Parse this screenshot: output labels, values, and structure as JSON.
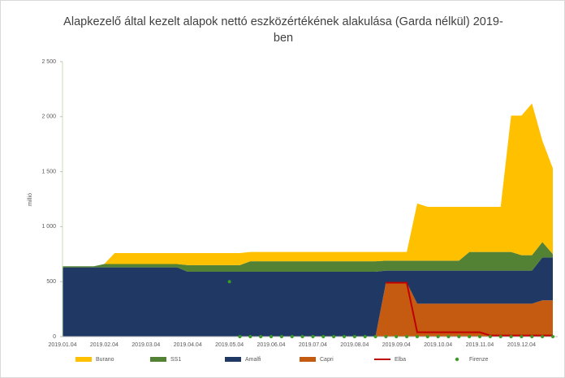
{
  "chart_data": {
    "type": "stacked_area",
    "title": "Alapkezelő által kezelt alapok nettó eszközértékének alakulása (Garda nélkül) 2019-ben",
    "y_label": "millió",
    "categories": [
      "2019.01.04",
      null,
      null,
      null,
      "2019.02.04",
      null,
      null,
      null,
      "2019.03.04",
      null,
      null,
      null,
      "2019.04.04",
      null,
      null,
      null,
      "2019.05.04",
      null,
      null,
      null,
      "2019.06.04",
      null,
      null,
      null,
      "2019.07.04",
      null,
      null,
      null,
      "2019.08.04",
      null,
      null,
      null,
      "2019.09.04",
      null,
      null,
      null,
      "2019.10.04",
      null,
      null,
      null,
      "2019.11.04",
      null,
      null,
      null,
      "2019.12.04",
      null,
      null,
      null
    ],
    "ylim": [
      0,
      2500
    ],
    "yticks": [
      0,
      500,
      {
        "value": 1000,
        "label": "1 000"
      },
      {
        "value": 1500,
        "label": "1 500"
      },
      {
        "value": 2000,
        "label": "2 000"
      },
      {
        "value": 2500,
        "label": "2 500"
      }
    ],
    "legend": "bottom",
    "series": [
      {
        "name": "Burano",
        "type": "area",
        "color": "#ffc000",
        "values": [
          0,
          0,
          0,
          0,
          0,
          100,
          100,
          100,
          100,
          100,
          100,
          100,
          110,
          110,
          110,
          110,
          110,
          110,
          85,
          85,
          85,
          85,
          85,
          85,
          85,
          85,
          85,
          85,
          85,
          85,
          85,
          80,
          80,
          80,
          520,
          490,
          490,
          490,
          490,
          410,
          410,
          410,
          410,
          1240,
          1270,
          1380,
          920,
          780
        ]
      },
      {
        "name": "SS1",
        "type": "area",
        "color": "#548235",
        "values": [
          10,
          10,
          10,
          10,
          30,
          30,
          30,
          30,
          30,
          30,
          30,
          30,
          60,
          60,
          60,
          60,
          60,
          60,
          95,
          95,
          95,
          95,
          95,
          95,
          95,
          95,
          95,
          95,
          95,
          95,
          95,
          90,
          90,
          90,
          90,
          90,
          90,
          90,
          90,
          170,
          170,
          170,
          170,
          170,
          140,
          140,
          140,
          30
        ]
      },
      {
        "name": "Amalfi",
        "type": "area",
        "color": "#203864",
        "values": [
          630,
          630,
          630,
          630,
          630,
          630,
          630,
          630,
          630,
          630,
          630,
          630,
          590,
          590,
          590,
          590,
          590,
          590,
          590,
          590,
          590,
          590,
          590,
          590,
          590,
          590,
          590,
          590,
          590,
          590,
          590,
          110,
          110,
          110,
          300,
          300,
          300,
          300,
          300,
          300,
          300,
          300,
          300,
          300,
          300,
          300,
          390,
          390
        ]
      },
      {
        "name": "Capri",
        "type": "area",
        "color": "#c55a11",
        "values": [
          0,
          0,
          0,
          0,
          0,
          0,
          0,
          0,
          0,
          0,
          0,
          0,
          0,
          0,
          0,
          0,
          0,
          0,
          0,
          0,
          0,
          0,
          0,
          0,
          0,
          0,
          0,
          0,
          0,
          0,
          0,
          490,
          490,
          490,
          300,
          300,
          300,
          300,
          300,
          300,
          300,
          300,
          300,
          300,
          300,
          300,
          330,
          330
        ]
      },
      {
        "name": "Elba",
        "type": "line",
        "color": "#c00000",
        "values": [
          null,
          null,
          null,
          null,
          null,
          null,
          null,
          null,
          null,
          null,
          null,
          null,
          null,
          null,
          null,
          null,
          null,
          null,
          null,
          null,
          null,
          null,
          null,
          null,
          null,
          null,
          null,
          null,
          null,
          null,
          null,
          490,
          490,
          490,
          40,
          40,
          40,
          40,
          40,
          40,
          40,
          10,
          10,
          10,
          10,
          10,
          10,
          10
        ]
      },
      {
        "name": "Firenze",
        "type": "scatter",
        "color": "#3a9d23",
        "values": [
          null,
          null,
          null,
          null,
          null,
          null,
          null,
          null,
          null,
          null,
          null,
          null,
          null,
          null,
          null,
          null,
          500,
          0,
          0,
          0,
          0,
          0,
          0,
          0,
          0,
          0,
          0,
          0,
          0,
          0,
          0,
          0,
          0,
          0,
          0,
          0,
          0,
          0,
          0,
          0,
          0,
          0,
          0,
          0,
          0,
          0,
          0,
          0
        ]
      }
    ]
  }
}
